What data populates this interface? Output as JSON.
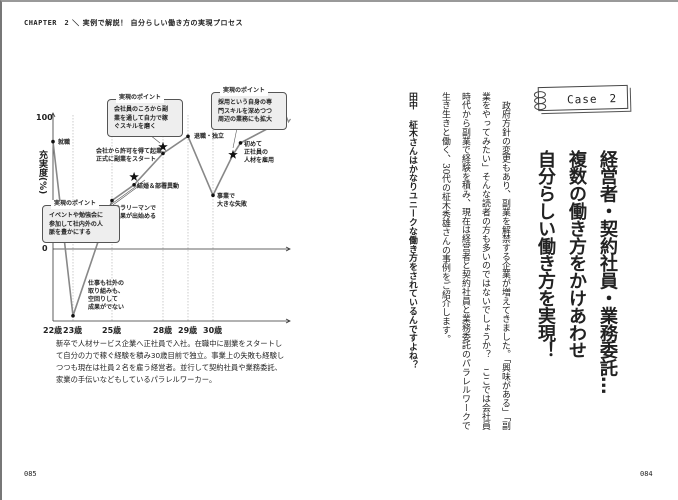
{
  "header": {
    "chapter": "CHAPTER　2",
    "slash": "＼",
    "title": "実例で解説！ 自分らしい働き方の実現プロセス"
  },
  "page_left": "085",
  "page_right": "084",
  "chart": {
    "ylabel": "充実度(%)",
    "ytick_100": "100",
    "ytick_0": "0",
    "events": {
      "shushoku": "就職",
      "slump": "仕事も社外の\n取り組みも、\n空回りして\n成果がでない",
      "salaryman": "サラリーマンで\n成果が出始める",
      "marriage": "結婚＆部署異動",
      "kigyo": "会社から許可を得て起業、\n正式に副業をスタート",
      "taishoku": "退職・独立",
      "failure": "事業で\n大きな失敗",
      "hire": "初めて\n正社員の\n人材を雇用"
    },
    "callouts": [
      {
        "title": "実現のポイント",
        "text": "イベントや勉強会に\n参加して社内外の人\n脈を豊かにする"
      },
      {
        "title": "実現のポイント",
        "text": "会社員のころから副\n業を通して自力で稼\nぐスキルを磨く"
      },
      {
        "title": "実現のポイント",
        "text": "採用という自身の専\n門スキルを深めつつ\n周辺の業務にも拡大"
      }
    ]
  },
  "chart_data": {
    "type": "line",
    "ylabel": "充実度(%)",
    "yticks": [
      0,
      100
    ],
    "ylim": [
      -55,
      105
    ],
    "xticks": [
      "22歳",
      "23歳",
      "25歳",
      "28歳",
      "29歳",
      "30歳"
    ],
    "x_ages": [
      22,
      23,
      25,
      28,
      29,
      30
    ],
    "points": [
      {
        "x": 22,
        "y": 82
      },
      {
        "x": 23,
        "y": -51
      },
      {
        "x": 25,
        "y": 37
      },
      {
        "x": 26.3,
        "y": 49
      },
      {
        "x": 28,
        "y": 73
      },
      {
        "x": 29,
        "y": 86
      },
      {
        "x": 30,
        "y": 41
      },
      {
        "x": 30.8,
        "y": 72
      },
      {
        "x": 31.1,
        "y": 81
      },
      {
        "x": 32.7,
        "y": 97
      }
    ],
    "stars": [
      {
        "x": 26.3,
        "y": 55
      },
      {
        "x": 28,
        "y": 78
      },
      {
        "x": 30.8,
        "y": 72
      }
    ],
    "grid": "dotted vertical lines at ages"
  },
  "caption": "新卒で人材サービス企業へ正社員で入社。在職中に副業をスタートして自分の力で稼ぐ経験を積み30歳目前で独立。事業上の失敗も経験しつつも現在は社員２名を雇う経営者。並行して契約社員や業務委託、家業の手伝いなどもしているパラレルワーカー。",
  "case_label": "Case　2",
  "title_lines": [
    "経営者・契約社員・業務委託…",
    "複数の働き方をかけあわせ",
    "自分らしい働き方を実現！"
  ],
  "body": [
    "政府方針の変更もあり、副業を解禁する企業が増えてきました。「興味がある」「副",
    "業をやってみたい」そんな読者の方も多いのではないでしょうか？　ここでは会社員",
    "時代から副業で経験を積み、現在は経営者と契約社員と業務委託のパラレルワークで",
    "生き生きと働く、30代の柾木秀雄さんの事例をご紹介します。"
  ],
  "dialogue": {
    "speaker": "田中",
    "text": "柾木さんはかなりユニークな働き方をされているんですよね？"
  }
}
